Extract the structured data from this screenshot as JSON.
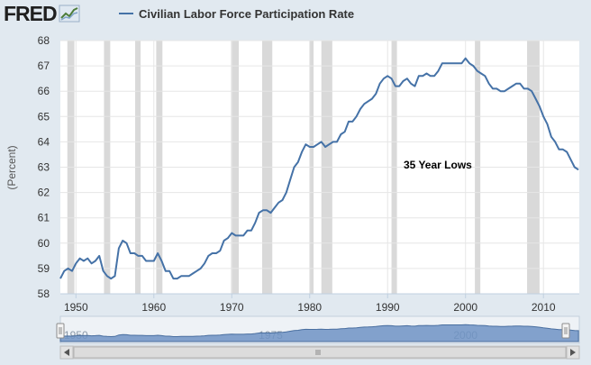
{
  "header": {
    "logo_text": "FRED",
    "legend_label": "Civilian Labor Force Participation Rate"
  },
  "colors": {
    "series": "#4572a7",
    "recession": "#d9d9d9",
    "plot_bg": "#ffffff",
    "page_bg": "#e1e9f0"
  },
  "chart_data": {
    "type": "line",
    "title": "",
    "xlabel": "",
    "ylabel": "(Percent)",
    "xlim": [
      1948,
      2014.6
    ],
    "ylim": [
      58,
      68
    ],
    "x_ticks": [
      1950,
      1960,
      1970,
      1980,
      1990,
      2000,
      2010
    ],
    "y_ticks": [
      58,
      59,
      60,
      61,
      62,
      63,
      64,
      65,
      66,
      67,
      68
    ],
    "grid": true,
    "legend": "top",
    "annotation": "35 Year Lows",
    "recessions": [
      [
        1948.9,
        1949.8
      ],
      [
        1953.6,
        1954.4
      ],
      [
        1957.6,
        1958.3
      ],
      [
        1960.3,
        1961.1
      ],
      [
        1969.9,
        1970.9
      ],
      [
        1973.9,
        1975.2
      ],
      [
        1980.0,
        1980.5
      ],
      [
        1981.5,
        1982.9
      ],
      [
        1990.5,
        1991.2
      ],
      [
        2001.2,
        2001.9
      ],
      [
        2007.9,
        2009.5
      ]
    ],
    "series": [
      {
        "name": "Civilian Labor Force Participation Rate",
        "x": [
          1948.0,
          1948.5,
          1949.0,
          1949.5,
          1950.0,
          1950.5,
          1951.0,
          1951.5,
          1952.0,
          1952.5,
          1953.0,
          1953.5,
          1954.0,
          1954.5,
          1955.0,
          1955.5,
          1956.0,
          1956.5,
          1957.0,
          1957.5,
          1958.0,
          1958.5,
          1959.0,
          1959.5,
          1960.0,
          1960.5,
          1961.0,
          1961.5,
          1962.0,
          1962.5,
          1963.0,
          1963.5,
          1964.0,
          1964.5,
          1965.0,
          1965.5,
          1966.0,
          1966.5,
          1967.0,
          1967.5,
          1968.0,
          1968.5,
          1969.0,
          1969.5,
          1970.0,
          1970.5,
          1971.0,
          1971.5,
          1972.0,
          1972.5,
          1973.0,
          1973.5,
          1974.0,
          1974.5,
          1975.0,
          1975.5,
          1976.0,
          1976.5,
          1977.0,
          1977.5,
          1978.0,
          1978.5,
          1979.0,
          1979.5,
          1980.0,
          1980.5,
          1981.0,
          1981.5,
          1982.0,
          1982.5,
          1983.0,
          1983.5,
          1984.0,
          1984.5,
          1985.0,
          1985.5,
          1986.0,
          1986.5,
          1987.0,
          1987.5,
          1988.0,
          1988.5,
          1989.0,
          1989.5,
          1990.0,
          1990.5,
          1991.0,
          1991.5,
          1992.0,
          1992.5,
          1993.0,
          1993.5,
          1994.0,
          1994.5,
          1995.0,
          1995.5,
          1996.0,
          1996.5,
          1997.0,
          1997.5,
          1998.0,
          1998.5,
          1999.0,
          1999.5,
          2000.0,
          2000.5,
          2001.0,
          2001.5,
          2002.0,
          2002.5,
          2003.0,
          2003.5,
          2004.0,
          2004.5,
          2005.0,
          2005.5,
          2006.0,
          2006.5,
          2007.0,
          2007.5,
          2008.0,
          2008.5,
          2009.0,
          2009.5,
          2010.0,
          2010.5,
          2011.0,
          2011.5,
          2012.0,
          2012.5,
          2013.0,
          2013.5,
          2014.0,
          2014.5
        ],
        "values": [
          58.6,
          58.9,
          59.0,
          58.9,
          59.2,
          59.4,
          59.3,
          59.4,
          59.2,
          59.3,
          59.5,
          58.9,
          58.7,
          58.6,
          58.7,
          59.8,
          60.1,
          60.0,
          59.6,
          59.6,
          59.5,
          59.5,
          59.3,
          59.3,
          59.3,
          59.6,
          59.3,
          58.9,
          58.9,
          58.6,
          58.6,
          58.7,
          58.7,
          58.7,
          58.8,
          58.9,
          59.0,
          59.2,
          59.5,
          59.6,
          59.6,
          59.7,
          60.1,
          60.2,
          60.4,
          60.3,
          60.3,
          60.3,
          60.5,
          60.5,
          60.8,
          61.2,
          61.3,
          61.3,
          61.2,
          61.4,
          61.6,
          61.7,
          62.0,
          62.5,
          63.0,
          63.2,
          63.6,
          63.9,
          63.8,
          63.8,
          63.9,
          64.0,
          63.8,
          63.9,
          64.0,
          64.0,
          64.3,
          64.4,
          64.8,
          64.8,
          65.0,
          65.3,
          65.5,
          65.6,
          65.7,
          65.9,
          66.3,
          66.5,
          66.6,
          66.5,
          66.2,
          66.2,
          66.4,
          66.5,
          66.3,
          66.2,
          66.6,
          66.6,
          66.7,
          66.6,
          66.6,
          66.8,
          67.1,
          67.1,
          67.1,
          67.1,
          67.1,
          67.1,
          67.3,
          67.1,
          67.0,
          66.8,
          66.7,
          66.6,
          66.3,
          66.1,
          66.1,
          66.0,
          66.0,
          66.1,
          66.2,
          66.3,
          66.3,
          66.1,
          66.1,
          66.0,
          65.7,
          65.4,
          65.0,
          64.7,
          64.2,
          64.0,
          63.7,
          63.7,
          63.6,
          63.3,
          63.0,
          62.9
        ]
      }
    ],
    "navigator": {
      "labels": [
        "1950",
        "1975",
        "2000"
      ],
      "label_years": [
        1950,
        1975,
        2000
      ]
    }
  }
}
